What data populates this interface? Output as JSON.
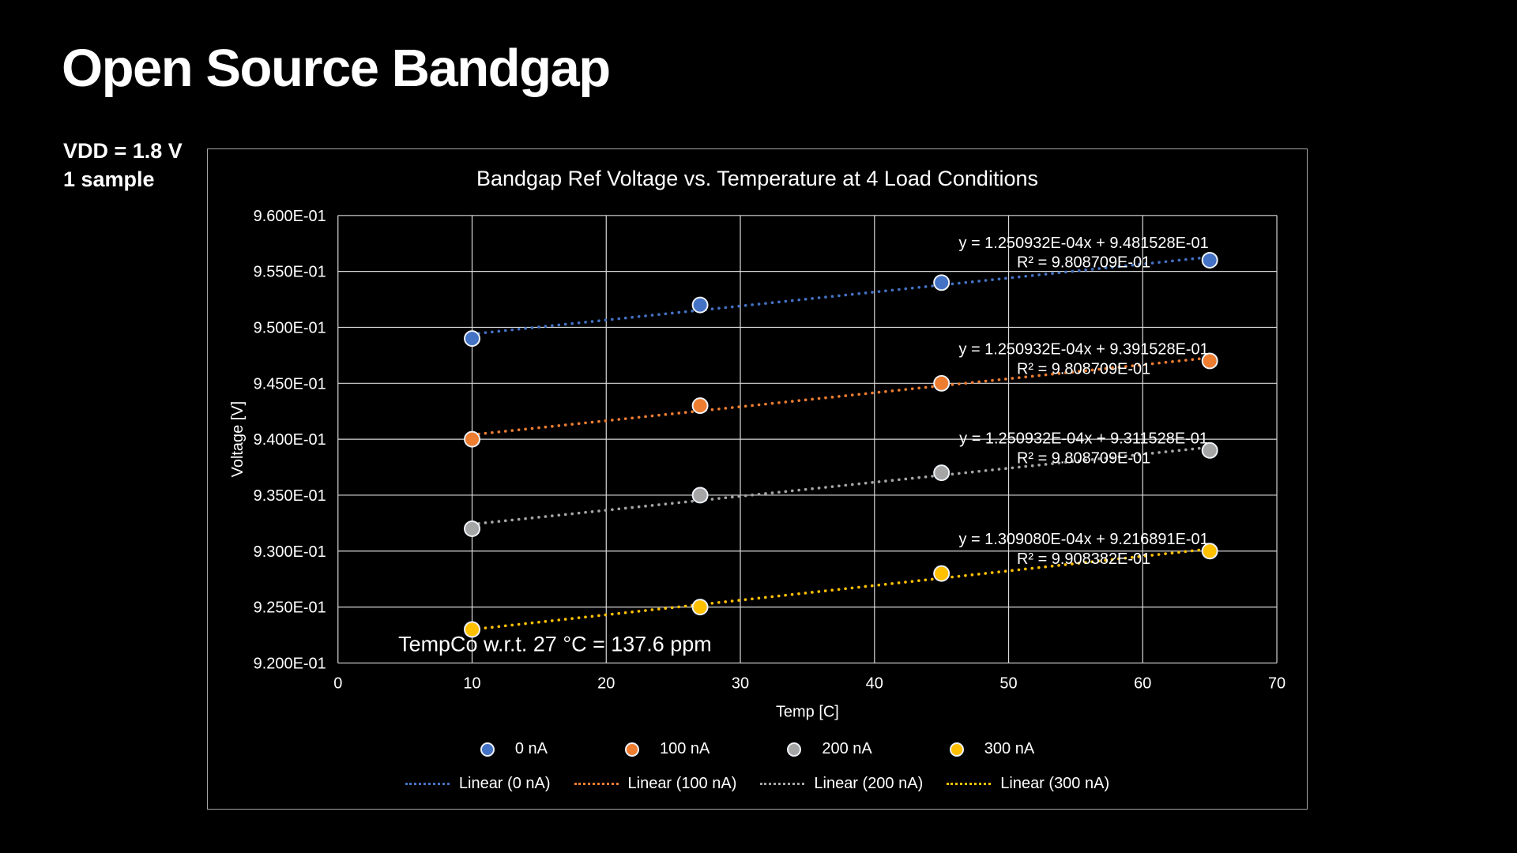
{
  "page": {
    "title": "Open Source Bandgap",
    "conditions": [
      "VDD = 1.8 V",
      "1 sample"
    ]
  },
  "colors": {
    "background": "#000000",
    "text": "#ffffff",
    "chart_border": "#a6a6a6",
    "gridline": "#d9d9d9",
    "marker_outline": "#eef2f8"
  },
  "chart_data": {
    "type": "scatter",
    "title": "Bandgap Ref Voltage vs. Temperature at 4 Load Conditions",
    "xlabel": "Temp [C]",
    "ylabel": "Voltage [V]",
    "xlim": [
      0,
      70
    ],
    "ylim": [
      0.92,
      0.96
    ],
    "grid": true,
    "legend_position": "bottom",
    "x_ticks": [
      0,
      10,
      20,
      30,
      40,
      50,
      60,
      70
    ],
    "x_tick_labels": [
      "0",
      "10",
      "20",
      "30",
      "40",
      "50",
      "60",
      "70"
    ],
    "y_ticks": [
      0.92,
      0.925,
      0.93,
      0.935,
      0.94,
      0.945,
      0.95,
      0.955,
      0.96
    ],
    "y_tick_labels": [
      "9.200E-01",
      "9.250E-01",
      "9.300E-01",
      "9.350E-01",
      "9.400E-01",
      "9.450E-01",
      "9.500E-01",
      "9.550E-01",
      "9.600E-01"
    ],
    "x": [
      10,
      27,
      45,
      65
    ],
    "series": [
      {
        "name": "0 nA",
        "color": "#4472C4",
        "values": [
          0.949,
          0.952,
          0.954,
          0.956
        ],
        "trendline": {
          "label": "Linear (0 nA)",
          "slope": 0.0001250932,
          "intercept": 0.9481528,
          "equation": "y = 1.250932E-04x + 9.481528E-01",
          "r2": "R² = 9.808709E-01",
          "eq_anchor": {
            "x": 55.6,
            "y": 0.9576
          }
        }
      },
      {
        "name": "100 nA",
        "color": "#ED7D31",
        "values": [
          0.94,
          0.943,
          0.945,
          0.947
        ],
        "trendline": {
          "label": "Linear (100 nA)",
          "slope": 0.0001250932,
          "intercept": 0.9391528,
          "equation": "y = 1.250932E-04x + 9.391528E-01",
          "r2": "R² = 9.808709E-01",
          "eq_anchor": {
            "x": 55.6,
            "y": 0.9481
          }
        }
      },
      {
        "name": "200 nA",
        "color": "#A5A5A5",
        "values": [
          0.932,
          0.935,
          0.937,
          0.939
        ],
        "trendline": {
          "label": "Linear (200 nA)",
          "slope": 0.0001250932,
          "intercept": 0.9311528,
          "equation": "y = 1.250932E-04x + 9.311528E-01",
          "r2": "R² = 9.808709E-01",
          "eq_anchor": {
            "x": 55.6,
            "y": 0.9401
          }
        }
      },
      {
        "name": "300 nA",
        "color": "#FFC000",
        "values": [
          0.923,
          0.925,
          0.928,
          0.93
        ],
        "trendline": {
          "label": "Linear (300 nA)",
          "slope": 0.000130908,
          "intercept": 0.9216891,
          "equation": "y = 1.309080E-04x + 9.216891E-01",
          "r2": "R² = 9.908382E-01",
          "eq_anchor": {
            "x": 55.6,
            "y": 0.9311
          }
        }
      }
    ],
    "annotation": {
      "text": "TempCo w.r.t. 27 °C = 137.6 ppm",
      "x": 4.5,
      "y": 0.9217
    }
  }
}
